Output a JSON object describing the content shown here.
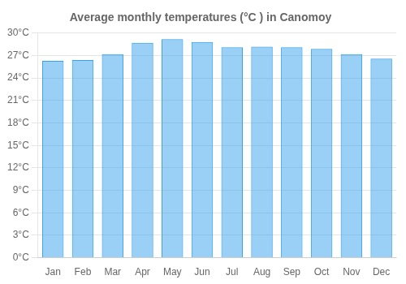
{
  "chart_data": {
    "type": "bar",
    "title": "Average monthly temperatures (°C ) in Canomoy",
    "categories": [
      "Jan",
      "Feb",
      "Mar",
      "Apr",
      "May",
      "Jun",
      "Jul",
      "Aug",
      "Sep",
      "Oct",
      "Nov",
      "Dec"
    ],
    "values": [
      26.3,
      26.4,
      27.2,
      28.7,
      29.2,
      28.8,
      28.1,
      28.2,
      28.1,
      27.9,
      27.2,
      26.6
    ],
    "ylim": [
      0,
      30
    ],
    "yticks": [
      {
        "value": 0,
        "label": "0°C"
      },
      {
        "value": 3,
        "label": "3°C"
      },
      {
        "value": 6,
        "label": "6°C"
      },
      {
        "value": 9,
        "label": "9°C"
      },
      {
        "value": 12,
        "label": "12°C"
      },
      {
        "value": 15,
        "label": "15°C"
      },
      {
        "value": 18,
        "label": "18°C"
      },
      {
        "value": 21,
        "label": "21°C"
      },
      {
        "value": 24,
        "label": "24°C"
      },
      {
        "value": 27,
        "label": "27°C"
      },
      {
        "value": 30,
        "label": "30°C"
      }
    ],
    "grid": true
  }
}
